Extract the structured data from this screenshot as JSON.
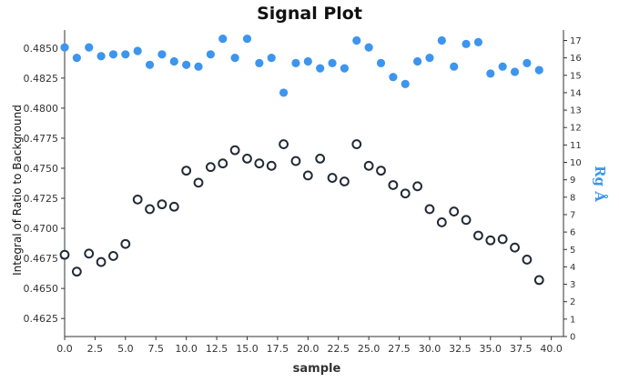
{
  "chart_data": {
    "type": "scatter",
    "title": "Signal Plot",
    "xlabel": "sample",
    "ylabel": "Integral of Ratio to Background",
    "y2label": "Rg Å",
    "xlim": [
      0,
      41
    ],
    "ylim": [
      0.461,
      0.4865
    ],
    "y2lim": [
      0,
      17.6
    ],
    "x_ticks": [
      "0.0",
      "2.5",
      "5.0",
      "7.5",
      "10.0",
      "12.5",
      "15.0",
      "17.5",
      "20.0",
      "22.5",
      "25.0",
      "27.5",
      "30.0",
      "32.5",
      "35.0",
      "37.5",
      "40.0"
    ],
    "y_ticks": [
      "0.4625",
      "0.4650",
      "0.4675",
      "0.4700",
      "0.4725",
      "0.4750",
      "0.4775",
      "0.4800",
      "0.4825",
      "0.4850"
    ],
    "y2_ticks": [
      "0",
      "1",
      "2",
      "3",
      "4",
      "5",
      "6",
      "7",
      "8",
      "9",
      "10",
      "11",
      "12",
      "13",
      "14",
      "15",
      "16",
      "17"
    ],
    "grid": false,
    "colors": {
      "integral": "#222a35",
      "rg": "#3d95ee",
      "axis": "#333333"
    },
    "series": [
      {
        "axis": "left",
        "marker": "open-circle",
        "x": [
          0,
          1,
          2,
          3,
          4,
          5,
          6,
          7,
          8,
          9,
          10,
          11,
          12,
          13,
          14,
          15,
          16,
          17,
          18,
          19,
          20,
          21,
          22,
          23,
          24,
          25,
          26,
          27,
          28,
          29,
          30,
          31,
          32,
          33,
          34,
          35,
          36,
          37,
          38,
          39
        ],
        "values": [
          0.4678,
          0.4664,
          0.4679,
          0.4672,
          0.4677,
          0.4687,
          0.4724,
          0.4716,
          0.472,
          0.4718,
          0.4748,
          0.4738,
          0.4751,
          0.4754,
          0.4765,
          0.4758,
          0.4754,
          0.4752,
          0.477,
          0.4756,
          0.4744,
          0.4758,
          0.4742,
          0.4739,
          0.477,
          0.4752,
          0.4748,
          0.4736,
          0.4729,
          0.4735,
          0.4716,
          0.4705,
          0.4714,
          0.4707,
          0.4694,
          0.469,
          0.4691,
          0.4684,
          0.4674,
          0.4657
        ]
      },
      {
        "axis": "right",
        "marker": "filled-circle",
        "x": [
          0,
          1,
          2,
          3,
          4,
          5,
          6,
          7,
          8,
          9,
          10,
          11,
          12,
          13,
          14,
          15,
          16,
          17,
          18,
          19,
          20,
          21,
          22,
          23,
          24,
          25,
          26,
          27,
          28,
          29,
          30,
          31,
          32,
          33,
          34,
          35,
          36,
          37,
          38,
          39
        ],
        "values": [
          16.6,
          16.0,
          16.6,
          16.1,
          16.2,
          16.2,
          16.4,
          15.6,
          16.2,
          15.8,
          15.6,
          15.5,
          16.2,
          17.1,
          16.0,
          17.1,
          15.7,
          16.0,
          14.0,
          15.7,
          15.8,
          15.4,
          15.7,
          15.4,
          17.0,
          16.6,
          15.7,
          14.9,
          14.5,
          15.8,
          16.0,
          17.0,
          15.5,
          16.8,
          16.9,
          15.1,
          15.5,
          15.2,
          15.7,
          15.3
        ]
      }
    ]
  }
}
